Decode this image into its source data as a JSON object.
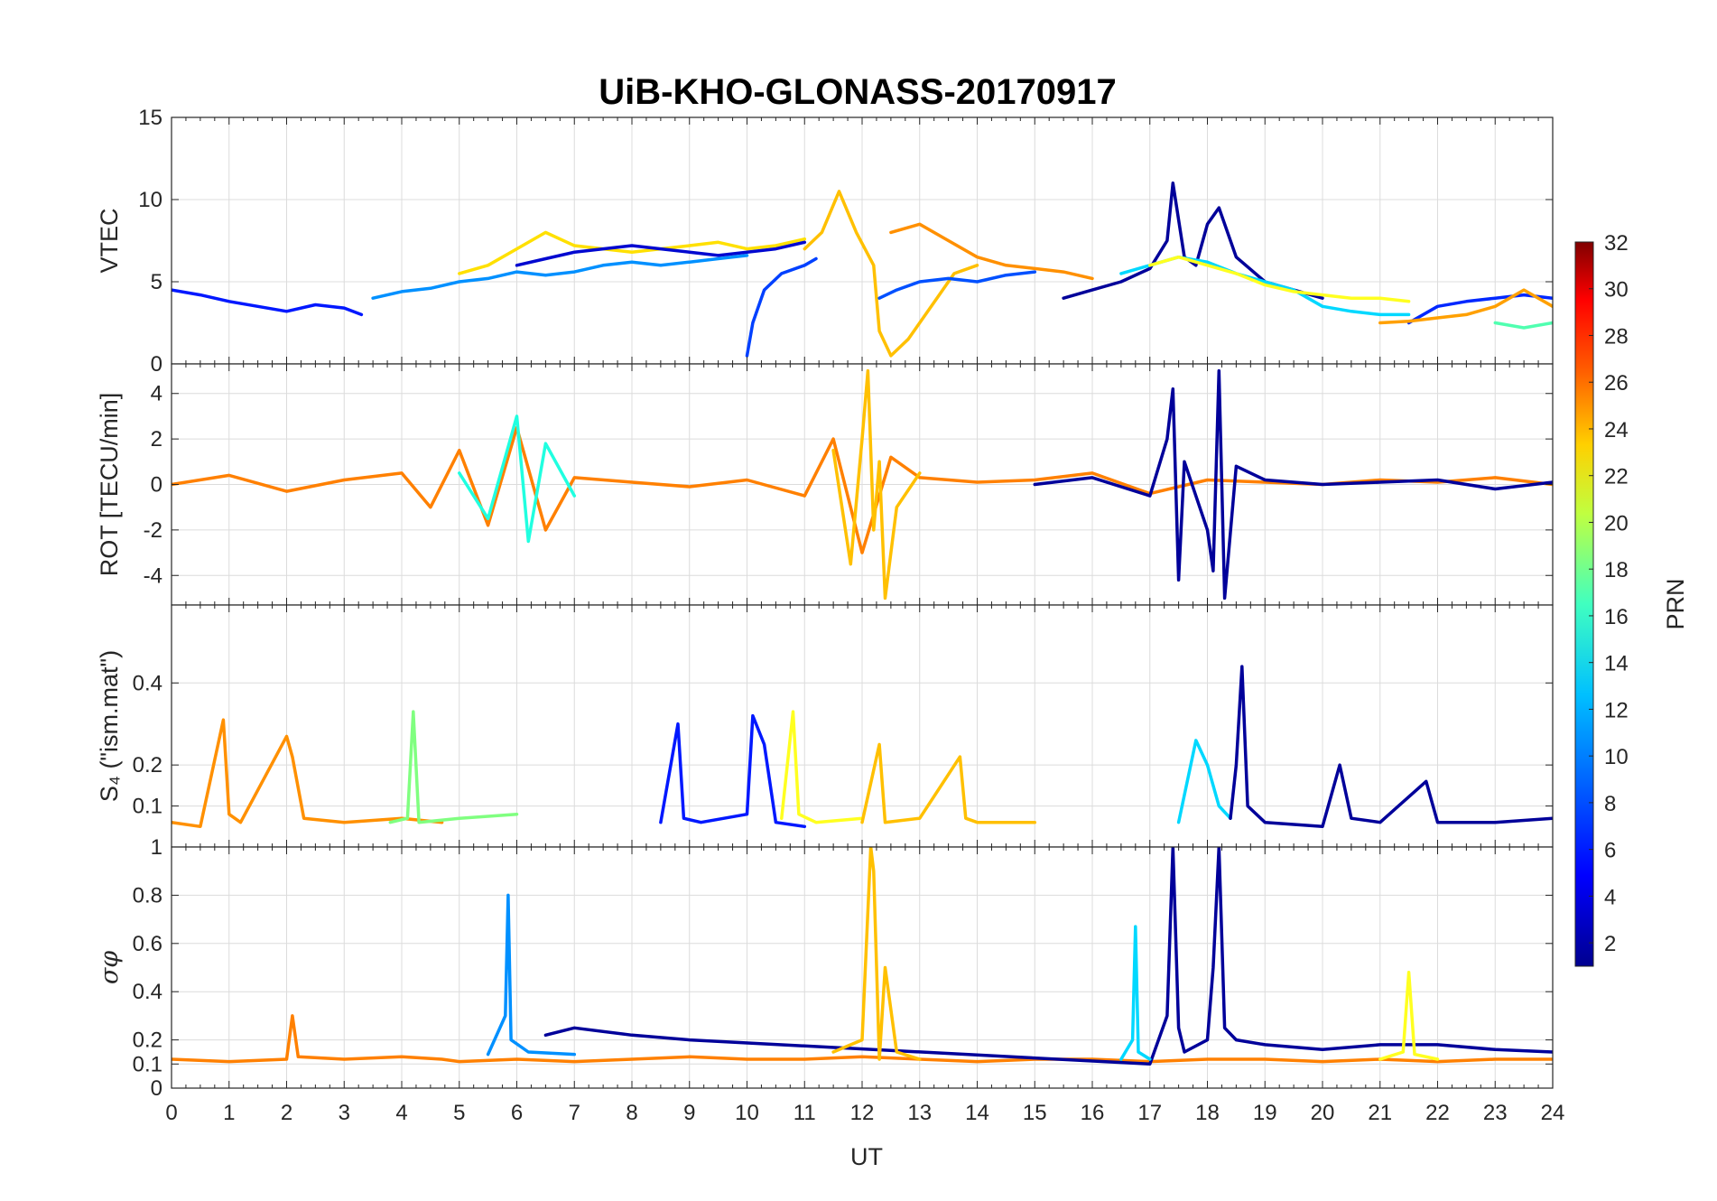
{
  "chart_data": {
    "title": "UiB-KHO-GLONASS-20170917",
    "xlabel": "UT",
    "xlim": [
      0,
      24
    ],
    "xticks": [
      "0",
      "1",
      "2",
      "3",
      "4",
      "5",
      "6",
      "7",
      "8",
      "9",
      "10",
      "11",
      "12",
      "13",
      "14",
      "15",
      "16",
      "17",
      "18",
      "19",
      "20",
      "21",
      "22",
      "23",
      "24"
    ],
    "type": "line",
    "colormap": "jet",
    "colorbar": {
      "label": "PRN",
      "range": [
        1,
        32
      ],
      "ticks": [
        "2",
        "4",
        "6",
        "8",
        "10",
        "12",
        "14",
        "16",
        "18",
        "20",
        "22",
        "24",
        "26",
        "28",
        "30",
        "32"
      ],
      "colors": [
        "#00008f",
        "#0000ff",
        "#0080ff",
        "#00ffff",
        "#80ff80",
        "#ffff00",
        "#ff8000",
        "#ff0000",
        "#800000"
      ]
    },
    "panels": [
      {
        "name": "vtec",
        "ylabel": "VTEC",
        "ylim": [
          0,
          15
        ],
        "yticks": [
          "0",
          "5",
          "10",
          "15"
        ],
        "series": [
          {
            "prn": 4,
            "color": "#0018ff",
            "x": [
              0,
              0.5,
              1,
              1.5,
              2,
              2.5,
              3,
              3.3
            ],
            "y": [
              4.5,
              4.2,
              3.8,
              3.5,
              3.2,
              3.6,
              3.4,
              3.0
            ]
          },
          {
            "prn": 9,
            "color": "#0090ff",
            "x": [
              3.5,
              4,
              4.5,
              5,
              5.5,
              6,
              6.5,
              7,
              7.5,
              8,
              8.5,
              9,
              9.5,
              10
            ],
            "y": [
              4.0,
              4.4,
              4.6,
              5.0,
              5.2,
              5.6,
              5.4,
              5.6,
              6.0,
              6.2,
              6.0,
              6.2,
              6.4,
              6.6
            ]
          },
          {
            "prn": 21,
            "color": "#ffe000",
            "x": [
              5,
              5.5,
              6,
              6.5,
              7,
              7.5,
              8,
              8.5,
              9,
              9.5,
              10,
              10.5,
              11
            ],
            "y": [
              5.5,
              6.0,
              7.0,
              8.0,
              7.2,
              7.0,
              6.8,
              7.0,
              7.2,
              7.4,
              7.0,
              7.2,
              7.6
            ]
          },
          {
            "prn": 3,
            "color": "#0008d0",
            "x": [
              6,
              6.5,
              7,
              7.5,
              8,
              8.5,
              9,
              9.5,
              10,
              10.5,
              11
            ],
            "y": [
              6.0,
              6.4,
              6.8,
              7.0,
              7.2,
              7.0,
              6.8,
              6.6,
              6.8,
              7.0,
              7.4
            ]
          },
          {
            "prn": 6,
            "color": "#0040ff",
            "x": [
              10,
              10.1,
              10.3,
              10.6,
              11,
              11.2
            ],
            "y": [
              0.5,
              2.5,
              4.5,
              5.5,
              6.0,
              6.4
            ]
          },
          {
            "prn": 22,
            "color": "#ffc000",
            "x": [
              11,
              11.3,
              11.6,
              11.9,
              12.2,
              12.3,
              12.5,
              12.8,
              13,
              13.3,
              13.6,
              14
            ],
            "y": [
              7.0,
              8.0,
              10.5,
              8.0,
              6.0,
              2.0,
              0.5,
              1.5,
              2.5,
              4.0,
              5.5,
              6.0
            ]
          },
          {
            "prn": 7,
            "color": "#0050ff",
            "x": [
              12.3,
              12.6,
              13,
              13.5,
              14,
              14.5,
              15
            ],
            "y": [
              4.0,
              4.5,
              5.0,
              5.2,
              5.0,
              5.4,
              5.6
            ]
          },
          {
            "prn": 24,
            "color": "#ff9000",
            "x": [
              12.5,
              13,
              13.5,
              14,
              14.5,
              15,
              15.5,
              16
            ],
            "y": [
              8.0,
              8.5,
              7.5,
              6.5,
              6.0,
              5.8,
              5.6,
              5.2
            ]
          },
          {
            "prn": 1,
            "color": "#00009a",
            "x": [
              15.5,
              16,
              16.5,
              17,
              17.3,
              17.4,
              17.6,
              17.8,
              18,
              18.2,
              18.5,
              19,
              19.5,
              20
            ],
            "y": [
              4.0,
              4.5,
              5.0,
              5.8,
              7.5,
              11.0,
              6.5,
              6.0,
              8.5,
              9.5,
              6.5,
              5.0,
              4.5,
              4.0
            ]
          },
          {
            "prn": 11,
            "color": "#00d8ff",
            "x": [
              16.5,
              17,
              17.5,
              18,
              18.5,
              19,
              19.5,
              20,
              20.5,
              21,
              21.5
            ],
            "y": [
              5.5,
              6.0,
              6.5,
              6.2,
              5.5,
              5.0,
              4.5,
              3.5,
              3.2,
              3.0,
              3.0
            ]
          },
          {
            "prn": 20,
            "color": "#ffff20",
            "x": [
              17,
              17.5,
              18,
              18.5,
              19,
              19.5,
              20,
              20.5,
              21,
              21.5
            ],
            "y": [
              6.0,
              6.5,
              6.0,
              5.5,
              4.8,
              4.4,
              4.2,
              4.0,
              4.0,
              3.8
            ]
          },
          {
            "prn": 5,
            "color": "#0028ff",
            "x": [
              21.5,
              22,
              22.5,
              23,
              23.5,
              24
            ],
            "y": [
              2.5,
              3.5,
              3.8,
              4.0,
              4.2,
              4.0
            ]
          },
          {
            "prn": 23,
            "color": "#ffa000",
            "x": [
              21,
              21.5,
              22,
              22.5,
              23,
              23.5,
              24
            ],
            "y": [
              2.5,
              2.6,
              2.8,
              3.0,
              3.5,
              4.5,
              3.5
            ]
          },
          {
            "prn": 15,
            "color": "#50ffb0",
            "x": [
              23,
              23.5,
              24
            ],
            "y": [
              2.5,
              2.2,
              2.5
            ]
          }
        ]
      },
      {
        "name": "rot",
        "ylabel": "ROT [TECU/min]",
        "ylim": [
          -5.3,
          5.3
        ],
        "yticks": [
          "-4",
          "-2",
          "0",
          "2",
          "4"
        ],
        "series": [
          {
            "prn": 24,
            "color": "#ff8000",
            "x": [
              0,
              1,
              2,
              3,
              4,
              4.5,
              5,
              5.5,
              6,
              6.5,
              7,
              8,
              9,
              10,
              11,
              11.5,
              12,
              12.5,
              13,
              14,
              15,
              16,
              17,
              18,
              19,
              20,
              21,
              22,
              23,
              24
            ],
            "y": [
              0,
              0.4,
              -0.3,
              0.2,
              0.5,
              -1.0,
              1.5,
              -1.8,
              2.5,
              -2.0,
              0.3,
              0.1,
              -0.1,
              0.2,
              -0.5,
              2.0,
              -3.0,
              1.2,
              0.3,
              0.1,
              0.2,
              0.5,
              -0.4,
              0.2,
              0.1,
              0,
              0.2,
              0.1,
              0.3,
              0
            ]
          },
          {
            "prn": 1,
            "color": "#00009a",
            "x": [
              15,
              16,
              17,
              17.3,
              17.4,
              17.5,
              17.6,
              18,
              18.1,
              18.2,
              18.3,
              18.5,
              19,
              20,
              21,
              22,
              23,
              24
            ],
            "y": [
              0,
              0.3,
              -0.5,
              2.0,
              4.2,
              -4.2,
              1.0,
              -2.0,
              -3.8,
              5.0,
              -5.0,
              0.8,
              0.2,
              0,
              0.1,
              0.2,
              -0.2,
              0.1
            ]
          },
          {
            "prn": 22,
            "color": "#ffc000",
            "x": [
              11.5,
              11.8,
              12,
              12.1,
              12.2,
              12.3,
              12.4,
              12.6,
              13
            ],
            "y": [
              1.5,
              -3.5,
              2.0,
              5.0,
              -2.0,
              1.0,
              -5.0,
              -1.0,
              0.5
            ]
          },
          {
            "prn": 12,
            "color": "#20ffe0",
            "x": [
              5,
              5.5,
              6,
              6.2,
              6.5,
              7
            ],
            "y": [
              0.5,
              -1.5,
              3.0,
              -2.5,
              1.8,
              -0.5
            ]
          }
        ]
      },
      {
        "name": "s4",
        "ylabel": "S₄ (\"ism.mat\")",
        "ylim": [
          0,
          0.59
        ],
        "yticks": [
          "0.1",
          "0.2",
          "0.4"
        ],
        "series": [
          {
            "prn": 23,
            "color": "#ff9000",
            "x": [
              0,
              0.5,
              0.9,
              1.0,
              1.2,
              2.0,
              2.1,
              2.3,
              3,
              4,
              4.7
            ],
            "y": [
              0.06,
              0.05,
              0.31,
              0.08,
              0.06,
              0.27,
              0.22,
              0.07,
              0.06,
              0.07,
              0.06
            ]
          },
          {
            "prn": 16,
            "color": "#80ff80",
            "x": [
              3.8,
              4.1,
              4.2,
              4.3,
              5,
              6
            ],
            "y": [
              0.06,
              0.07,
              0.33,
              0.06,
              0.07,
              0.08
            ]
          },
          {
            "prn": 4,
            "color": "#0018ff",
            "x": [
              8.5,
              8.8,
              8.9,
              9.2,
              10,
              10.1,
              10.3,
              10.5,
              11
            ],
            "y": [
              0.06,
              0.3,
              0.07,
              0.06,
              0.08,
              0.32,
              0.25,
              0.06,
              0.05
            ]
          },
          {
            "prn": 20,
            "color": "#ffff20",
            "x": [
              10.6,
              10.8,
              10.9,
              11.2,
              12
            ],
            "y": [
              0.07,
              0.33,
              0.08,
              0.06,
              0.07
            ]
          },
          {
            "prn": 22,
            "color": "#ffc000",
            "x": [
              12,
              12.3,
              12.4,
              13,
              13.7,
              13.8,
              14,
              15
            ],
            "y": [
              0.06,
              0.25,
              0.06,
              0.07,
              0.22,
              0.07,
              0.06,
              0.06
            ]
          },
          {
            "prn": 11,
            "color": "#00d8ff",
            "x": [
              17.5,
              17.8,
              18,
              18.2,
              18.4
            ],
            "y": [
              0.06,
              0.26,
              0.2,
              0.1,
              0.07
            ]
          },
          {
            "prn": 1,
            "color": "#00009a",
            "x": [
              18.4,
              18.5,
              18.6,
              18.7,
              19,
              20,
              20.3,
              20.5,
              21,
              21.8,
              22,
              23,
              24
            ],
            "y": [
              0.07,
              0.2,
              0.44,
              0.1,
              0.06,
              0.05,
              0.2,
              0.07,
              0.06,
              0.16,
              0.06,
              0.06,
              0.07
            ]
          }
        ]
      },
      {
        "name": "sigma-phi",
        "ylabel": "σφ",
        "ylim": [
          0,
          1
        ],
        "yticks": [
          "0",
          "0.1",
          "0.2",
          "0.4",
          "0.6",
          "0.8",
          "1"
        ],
        "series": [
          {
            "prn": 24,
            "color": "#ff8000",
            "x": [
              0,
              1,
              2,
              2.1,
              2.2,
              3,
              4,
              4.7,
              5,
              6,
              7,
              8,
              9,
              10,
              11,
              12,
              13,
              14,
              15,
              16,
              17,
              18,
              19,
              20,
              21,
              22,
              23,
              24
            ],
            "y": [
              0.12,
              0.11,
              0.12,
              0.3,
              0.13,
              0.12,
              0.13,
              0.12,
              0.11,
              0.12,
              0.11,
              0.12,
              0.13,
              0.12,
              0.12,
              0.13,
              0.12,
              0.11,
              0.12,
              0.12,
              0.11,
              0.12,
              0.12,
              0.11,
              0.12,
              0.11,
              0.12,
              0.12
            ]
          },
          {
            "prn": 9,
            "color": "#0090ff",
            "x": [
              5.5,
              5.8,
              5.85,
              5.9,
              6.2,
              7
            ],
            "y": [
              0.14,
              0.3,
              0.8,
              0.2,
              0.15,
              0.14
            ]
          },
          {
            "prn": 1,
            "color": "#00009a",
            "x": [
              6.5,
              7,
              8,
              9,
              17,
              17.3,
              17.4,
              17.5,
              17.6,
              18,
              18.1,
              18.2,
              18.3,
              18.5,
              19,
              20,
              21,
              22,
              23,
              24
            ],
            "y": [
              0.22,
              0.25,
              0.22,
              0.2,
              0.1,
              0.3,
              1.0,
              0.25,
              0.15,
              0.2,
              0.5,
              1.0,
              0.25,
              0.2,
              0.18,
              0.16,
              0.18,
              0.18,
              0.16,
              0.15
            ]
          },
          {
            "prn": 22,
            "color": "#ffc000",
            "x": [
              11.5,
              12,
              12.15,
              12.2,
              12.3,
              12.4,
              12.6,
              13
            ],
            "y": [
              0.15,
              0.2,
              1.0,
              0.9,
              0.12,
              0.5,
              0.15,
              0.12
            ]
          },
          {
            "prn": 11,
            "color": "#00d8ff",
            "x": [
              16.5,
              16.7,
              16.75,
              16.8,
              17
            ],
            "y": [
              0.12,
              0.2,
              0.67,
              0.15,
              0.12
            ]
          },
          {
            "prn": 20,
            "color": "#ffff20",
            "x": [
              21,
              21.4,
              21.5,
              21.6,
              22
            ],
            "y": [
              0.12,
              0.15,
              0.48,
              0.14,
              0.12
            ]
          }
        ]
      }
    ]
  }
}
